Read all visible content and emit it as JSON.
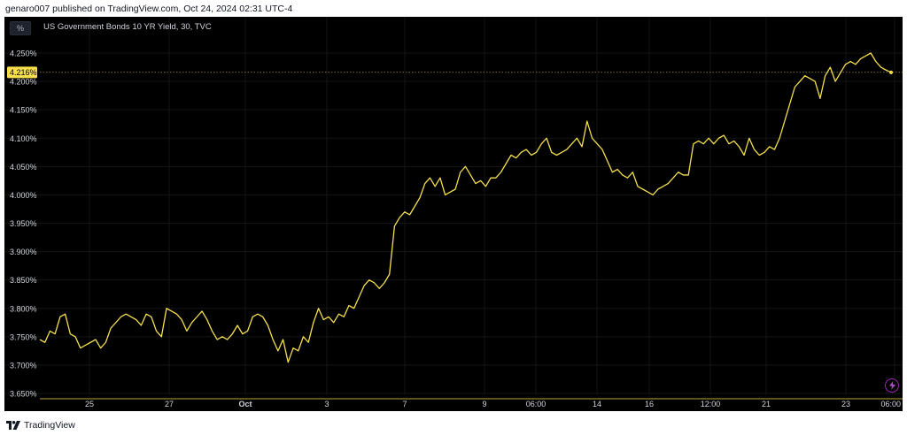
{
  "caption": "genaro007 published on TradingView.com, Oct 24, 2024 02:31 UTC-4",
  "unit_button": "%",
  "footer": {
    "brand": "TradingView",
    "logo_icon": "tradingview-logo-icon"
  },
  "colors": {
    "line": "#f5e04b",
    "background": "#000000",
    "price_tag": "#f5e04b"
  },
  "chart_data": {
    "type": "line",
    "title": "US Government Bonds 10 YR Yield, 30, TVC",
    "xlabel": "",
    "ylabel": "",
    "ylim": [
      3.65,
      4.27
    ],
    "y_ticks": [
      "3.650%",
      "3.700%",
      "3.750%",
      "3.800%",
      "3.850%",
      "3.900%",
      "3.950%",
      "4.000%",
      "4.050%",
      "4.100%",
      "4.150%",
      "4.200%",
      "4.250%"
    ],
    "x_ticks": [
      "25",
      "27",
      "Oct",
      "3",
      "7",
      "9",
      "06:00",
      "14",
      "16",
      "12:00",
      "21",
      "23",
      "06:00"
    ],
    "last_price": 4.216,
    "last_price_label": "4.216%",
    "grid": true,
    "series": [
      {
        "name": "",
        "values": [
          3.745,
          3.74,
          3.76,
          3.755,
          3.785,
          3.79,
          3.755,
          3.75,
          3.73,
          3.735,
          3.74,
          3.745,
          3.73,
          3.74,
          3.765,
          3.775,
          3.785,
          3.79,
          3.785,
          3.78,
          3.77,
          3.79,
          3.785,
          3.76,
          3.75,
          3.8,
          3.795,
          3.79,
          3.78,
          3.76,
          3.775,
          3.785,
          3.795,
          3.78,
          3.76,
          3.745,
          3.75,
          3.745,
          3.755,
          3.77,
          3.755,
          3.76,
          3.785,
          3.79,
          3.785,
          3.77,
          3.745,
          3.725,
          3.745,
          3.705,
          3.73,
          3.725,
          3.75,
          3.74,
          3.775,
          3.8,
          3.78,
          3.785,
          3.775,
          3.79,
          3.785,
          3.805,
          3.8,
          3.82,
          3.84,
          3.85,
          3.845,
          3.835,
          3.845,
          3.86,
          3.945,
          3.96,
          3.97,
          3.965,
          3.98,
          3.995,
          4.02,
          4.03,
          4.015,
          4.03,
          4.0,
          4.005,
          4.01,
          4.04,
          4.05,
          4.035,
          4.02,
          4.025,
          4.015,
          4.03,
          4.03,
          4.04,
          4.055,
          4.07,
          4.065,
          4.075,
          4.08,
          4.07,
          4.075,
          4.09,
          4.1,
          4.075,
          4.07,
          4.075,
          4.08,
          4.09,
          4.1,
          4.085,
          4.13,
          4.1,
          4.09,
          4.08,
          4.06,
          4.04,
          4.045,
          4.035,
          4.03,
          4.04,
          4.015,
          4.01,
          4.005,
          4.0,
          4.01,
          4.015,
          4.02,
          4.03,
          4.04,
          4.035,
          4.035,
          4.09,
          4.095,
          4.09,
          4.1,
          4.09,
          4.1,
          4.105,
          4.09,
          4.095,
          4.085,
          4.07,
          4.1,
          4.08,
          4.07,
          4.075,
          4.085,
          4.08,
          4.1,
          4.13,
          4.16,
          4.19,
          4.2,
          4.21,
          4.205,
          4.2,
          4.17,
          4.21,
          4.225,
          4.2,
          4.215,
          4.23,
          4.235,
          4.23,
          4.24,
          4.245,
          4.25,
          4.235,
          4.225,
          4.22,
          4.216
        ]
      }
    ]
  }
}
